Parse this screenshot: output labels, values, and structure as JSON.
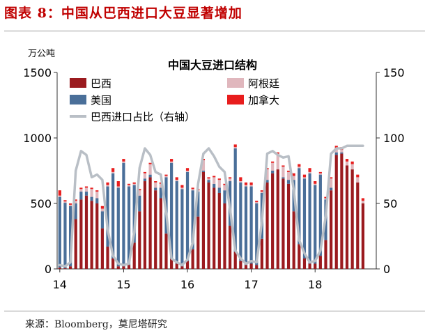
{
  "figure": {
    "title": "图表 8：中国从巴西进口大豆显著增加",
    "source": "来源：Bloomberg，莫尼塔研究"
  },
  "chart_data": {
    "type": "bar",
    "stacked": true,
    "title": "中国大豆进口结构",
    "ylabel_left": "万公吨",
    "ylim_left": [
      0,
      1500
    ],
    "yticks_left": [
      "0",
      "500",
      "1000",
      "1500"
    ],
    "ylim_right": [
      0,
      150
    ],
    "yticks_right": [
      "0",
      "50",
      "100",
      "150"
    ],
    "x_tick_labels": [
      "14",
      "15",
      "16",
      "17",
      "18"
    ],
    "x": [
      "2014-01",
      "2014-02",
      "2014-03",
      "2014-04",
      "2014-05",
      "2014-06",
      "2014-07",
      "2014-08",
      "2014-09",
      "2014-10",
      "2014-11",
      "2014-12",
      "2015-01",
      "2015-02",
      "2015-03",
      "2015-04",
      "2015-05",
      "2015-06",
      "2015-07",
      "2015-08",
      "2015-09",
      "2015-10",
      "2015-11",
      "2015-12",
      "2016-01",
      "2016-02",
      "2016-03",
      "2016-04",
      "2016-05",
      "2016-06",
      "2016-07",
      "2016-08",
      "2016-09",
      "2016-10",
      "2016-11",
      "2016-12",
      "2017-01",
      "2017-02",
      "2017-03",
      "2017-04",
      "2017-05",
      "2017-06",
      "2017-07",
      "2017-08",
      "2017-09",
      "2017-10",
      "2017-11",
      "2017-12",
      "2018-01",
      "2018-02",
      "2018-03",
      "2018-04",
      "2018-05",
      "2018-06",
      "2018-07",
      "2018-08",
      "2018-09",
      "2018-10",
      "2018-11",
      "2018-12"
    ],
    "legend_placement": "top-left",
    "grid": false,
    "series": [
      {
        "name": "巴西",
        "type": "bar",
        "axis": "left",
        "color": "#9b1b1f",
        "values": [
          10,
          5,
          20,
          380,
          530,
          560,
          520,
          500,
          310,
          170,
          80,
          20,
          20,
          30,
          200,
          440,
          670,
          700,
          600,
          540,
          270,
          80,
          40,
          20,
          60,
          150,
          400,
          740,
          660,
          620,
          580,
          500,
          330,
          130,
          60,
          30,
          40,
          30,
          230,
          660,
          730,
          760,
          690,
          650,
          440,
          190,
          80,
          40,
          40,
          100,
          220,
          600,
          870,
          880,
          790,
          760,
          660,
          500,
          null,
          null
        ]
      },
      {
        "name": "美国",
        "type": "bar",
        "axis": "left",
        "color": "#4a6f99",
        "values": [
          540,
          500,
          460,
          120,
          60,
          30,
          30,
          40,
          130,
          460,
          650,
          600,
          790,
          600,
          440,
          120,
          20,
          20,
          20,
          80,
          430,
          730,
          630,
          590,
          680,
          450,
          190,
          10,
          20,
          30,
          40,
          100,
          340,
          790,
          600,
          600,
          590,
          470,
          350,
          20,
          20,
          0,
          10,
          30,
          240,
          580,
          610,
          690,
          600,
          620,
          310,
          20,
          20,
          10,
          0,
          0,
          0,
          0,
          null,
          null
        ]
      },
      {
        "name": "阿根廷",
        "type": "bar",
        "axis": "left",
        "color": "#e0b7bd",
        "values": [
          10,
          10,
          10,
          20,
          20,
          30,
          60,
          50,
          20,
          10,
          10,
          10,
          10,
          10,
          10,
          40,
          40,
          80,
          40,
          30,
          10,
          10,
          10,
          10,
          10,
          10,
          10,
          80,
          10,
          50,
          60,
          40,
          20,
          10,
          10,
          10,
          10,
          10,
          10,
          80,
          60,
          120,
          80,
          60,
          30,
          10,
          10,
          10,
          10,
          10,
          10,
          70,
          30,
          20,
          30,
          40,
          40,
          20,
          null,
          null
        ]
      },
      {
        "name": "加拿大",
        "type": "bar",
        "axis": "left",
        "color": "#e81d1d",
        "values": [
          40,
          10,
          10,
          10,
          10,
          10,
          10,
          10,
          20,
          20,
          30,
          40,
          20,
          10,
          10,
          10,
          10,
          10,
          10,
          10,
          10,
          20,
          20,
          20,
          20,
          10,
          10,
          10,
          10,
          10,
          10,
          10,
          10,
          20,
          30,
          20,
          20,
          10,
          10,
          10,
          10,
          10,
          10,
          10,
          20,
          20,
          20,
          30,
          20,
          10,
          10,
          10,
          20,
          20,
          20,
          20,
          20,
          20,
          null,
          null
        ]
      },
      {
        "name": "巴西进口占比（右轴）",
        "type": "line",
        "axis": "right",
        "color": "#b9bfc6",
        "values": [
          3,
          2,
          5,
          75,
          90,
          87,
          70,
          72,
          68,
          30,
          10,
          4,
          3,
          4,
          28,
          77,
          92,
          87,
          74,
          72,
          43,
          8,
          5,
          3,
          7,
          20,
          65,
          88,
          92,
          86,
          78,
          74,
          46,
          14,
          8,
          4,
          6,
          5,
          36,
          88,
          90,
          87,
          85,
          86,
          60,
          22,
          12,
          5,
          6,
          14,
          40,
          88,
          92,
          92,
          94,
          94,
          94,
          94,
          null,
          null
        ]
      }
    ]
  }
}
